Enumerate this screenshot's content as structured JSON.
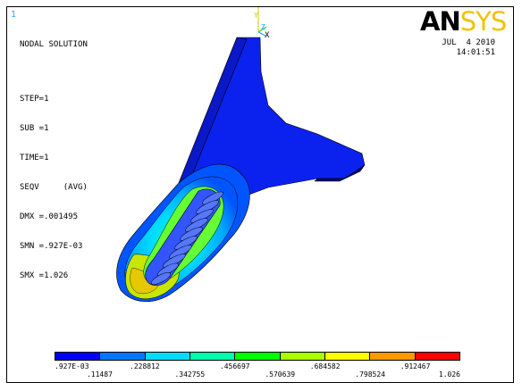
{
  "window_number": "1",
  "header": {
    "title": "NODAL SOLUTION",
    "step": "STEP=1",
    "sub": "SUB =1",
    "time": "TIME=1",
    "result": "SEQV     (AVG)",
    "dmx": "DMX =.001495",
    "smn": "SMN =.927E-03",
    "smx": "SMX =1.026"
  },
  "logo": {
    "part1": "AN",
    "part2": "SYS"
  },
  "date": "JUL  4 2010",
  "clock": "14:01:51",
  "triad": {
    "y_label": "Y",
    "z_label": "Z",
    "x_label": "X"
  },
  "legend": {
    "colors": [
      "#0000ff",
      "#0077ff",
      "#00ddff",
      "#00ffaa",
      "#00ff00",
      "#aaff00",
      "#ffff00",
      "#ff9900",
      "#ff0000"
    ],
    "labels_top": [
      ".927E-03",
      ".228812",
      ".456697",
      ".684582",
      ".912467"
    ],
    "labels_bottom": [
      ".11487",
      ".342755",
      ".570639",
      ".798524",
      "1.026"
    ]
  }
}
